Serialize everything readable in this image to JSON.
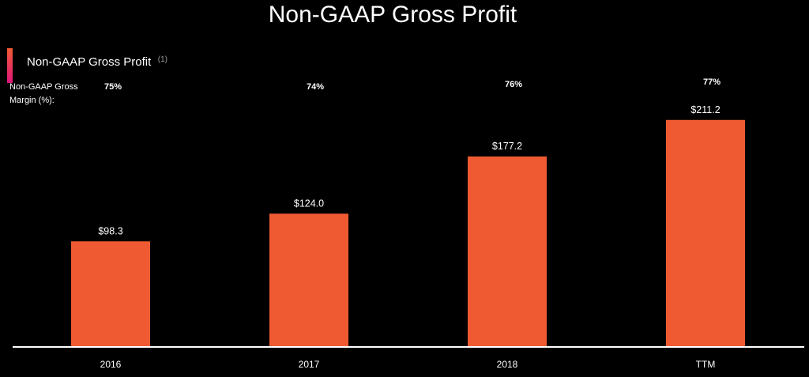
{
  "colors": {
    "background": "#000000",
    "bar": "#f05a33",
    "legend_gradient_top": "#f05a33",
    "legend_gradient_bottom": "#e0177a",
    "axis": "#ffffff",
    "text": "#ffffff"
  },
  "chart_data": {
    "type": "bar",
    "title": "Non-GAAP Gross Profit",
    "legend": {
      "label": "Non-GAAP Gross Profit",
      "superscript": "(1)",
      "placement": "top-left"
    },
    "categories": [
      "2016",
      "2017",
      "2018",
      "TTM"
    ],
    "series": [
      {
        "name": "Non-GAAP Gross Profit",
        "values": [
          98.3,
          124.0,
          177.2,
          211.2
        ],
        "labels": [
          "$98.3",
          "$124.0",
          "$177.2",
          "$211.2"
        ]
      }
    ],
    "margin_row": {
      "label_line1": "Non-GAAP Gross",
      "label_line2": "Margin (%):",
      "values": [
        75,
        74,
        76,
        77
      ],
      "labels": [
        "75%",
        "74%",
        "76%",
        "77%"
      ]
    },
    "ylim": [
      0,
      225
    ],
    "grid": false,
    "xlabel": "",
    "ylabel": ""
  }
}
